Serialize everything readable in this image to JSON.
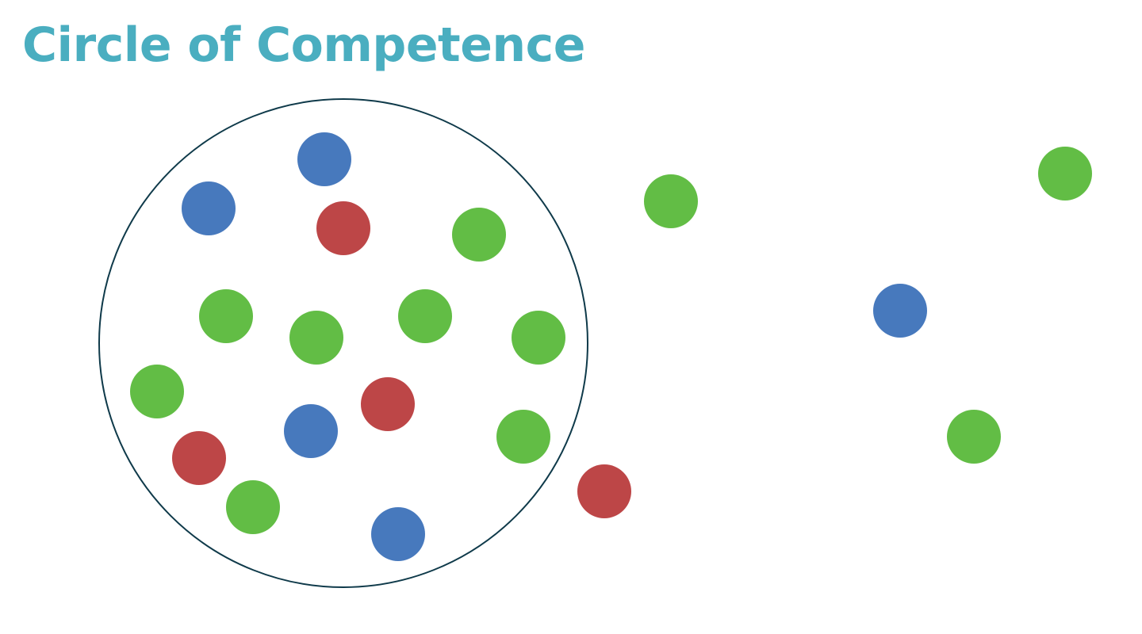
{
  "title": "Circle of Competence",
  "colors": {
    "title": "#4aaec0",
    "circle_outline": "#0f3a4a",
    "green": "#62bd45",
    "blue": "#4779bd",
    "red": "#bd4647"
  },
  "dots": [
    {
      "color": "blue"
    },
    {
      "color": "blue"
    },
    {
      "color": "red"
    },
    {
      "color": "green"
    },
    {
      "color": "green"
    },
    {
      "color": "green"
    },
    {
      "color": "green"
    },
    {
      "color": "green"
    },
    {
      "color": "green"
    },
    {
      "color": "red"
    },
    {
      "color": "blue"
    },
    {
      "color": "green"
    },
    {
      "color": "red"
    },
    {
      "color": "green"
    },
    {
      "color": "blue"
    },
    {
      "color": "red"
    },
    {
      "color": "green"
    },
    {
      "color": "green"
    },
    {
      "color": "blue"
    },
    {
      "color": "green"
    }
  ]
}
